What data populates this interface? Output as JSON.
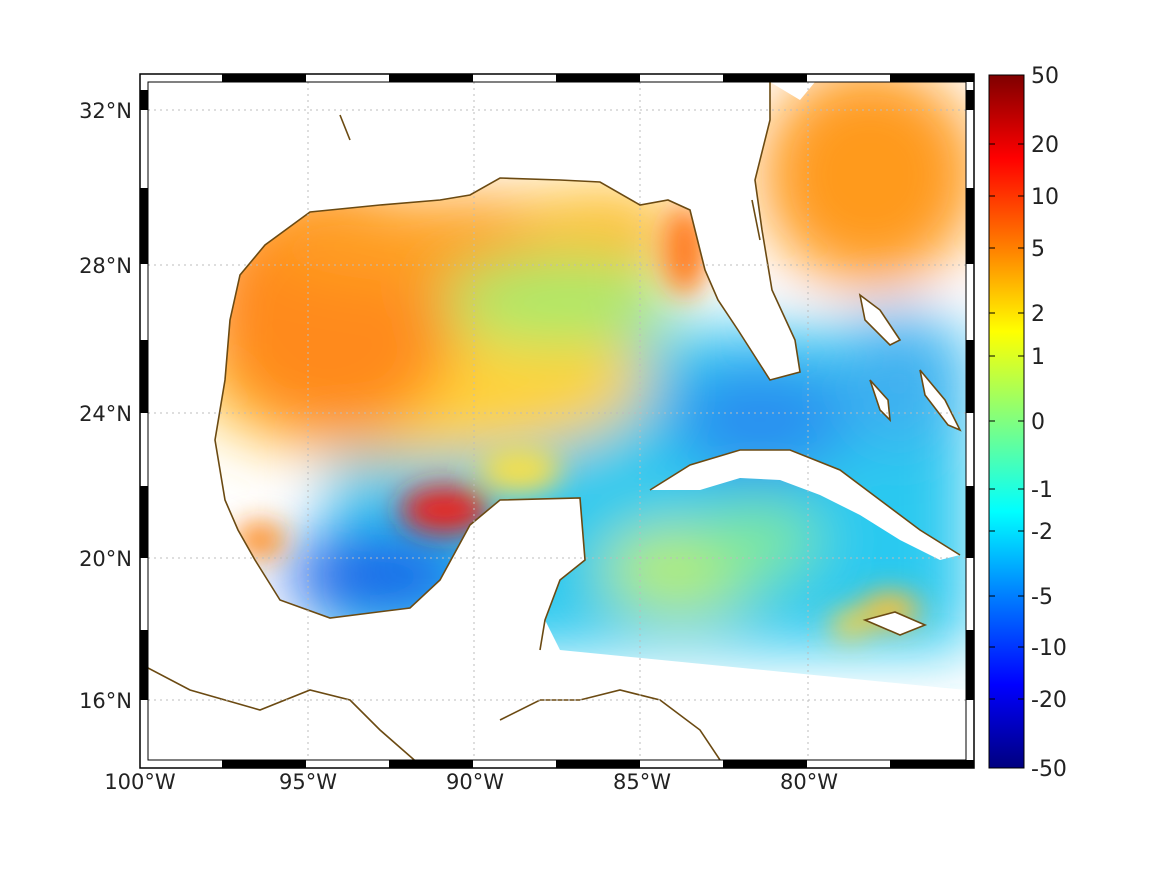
{
  "map": {
    "longitude_ticks": [
      "100°W",
      "95°W",
      "90°W",
      "85°W",
      "80°W"
    ],
    "latitude_ticks": [
      "32°N",
      "28°N",
      "24°N",
      "20°N",
      "16°N"
    ],
    "lon_range": [
      -100,
      -75
    ],
    "lat_range": [
      14.3,
      33
    ],
    "grid": true,
    "frame_style": "alternating black and white border bars",
    "coastline_color": "#6b4a12",
    "land_color": "#ffffff"
  },
  "colorbar": {
    "placement": "right",
    "tick_labels": [
      "50",
      "20",
      "10",
      "5",
      "2",
      "1",
      "0",
      "-1",
      "-2",
      "-5",
      "-10",
      "-20",
      "-50"
    ],
    "colormap": "jet",
    "colors": [
      "#7f0000",
      "#ff0000",
      "#ff8000",
      "#ffff00",
      "#80ff80",
      "#00ffff",
      "#0080ff",
      "#0000ff",
      "#00007f"
    ]
  }
}
